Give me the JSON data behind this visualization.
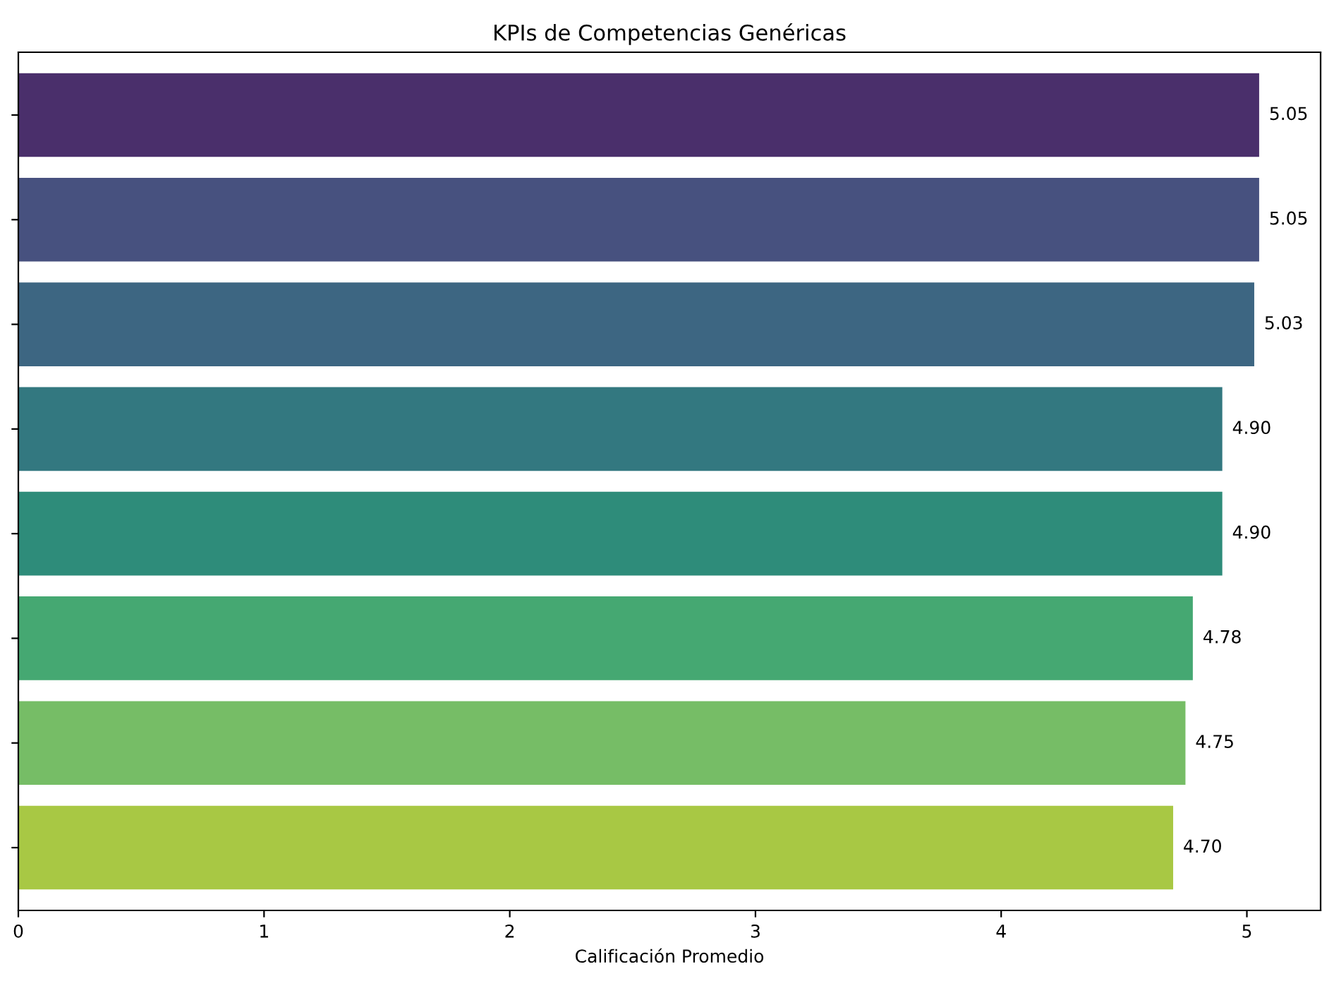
{
  "chart_data": {
    "type": "bar",
    "orientation": "horizontal",
    "title": "KPIs de Competencias Genéricas",
    "xlabel": "Calificación Promedio",
    "categories": [
      null,
      null,
      null,
      null,
      null,
      null,
      null,
      null
    ],
    "values": [
      5.05,
      5.05,
      5.03,
      4.9,
      4.9,
      4.78,
      4.75,
      4.7
    ],
    "value_labels": [
      "5.05",
      "5.05",
      "5.03",
      "4.90",
      "4.90",
      "4.78",
      "4.75",
      "4.70"
    ],
    "colors": [
      "#4a2f6b",
      "#47517f",
      "#3d6682",
      "#337880",
      "#2e8c7a",
      "#45a872",
      "#76bd66",
      "#a8c844"
    ],
    "xlim": [
      0,
      5.3
    ],
    "xticks": [
      0,
      1,
      2,
      3,
      4,
      5
    ],
    "tick_labels": "x",
    "grid": false,
    "legend": false
  }
}
